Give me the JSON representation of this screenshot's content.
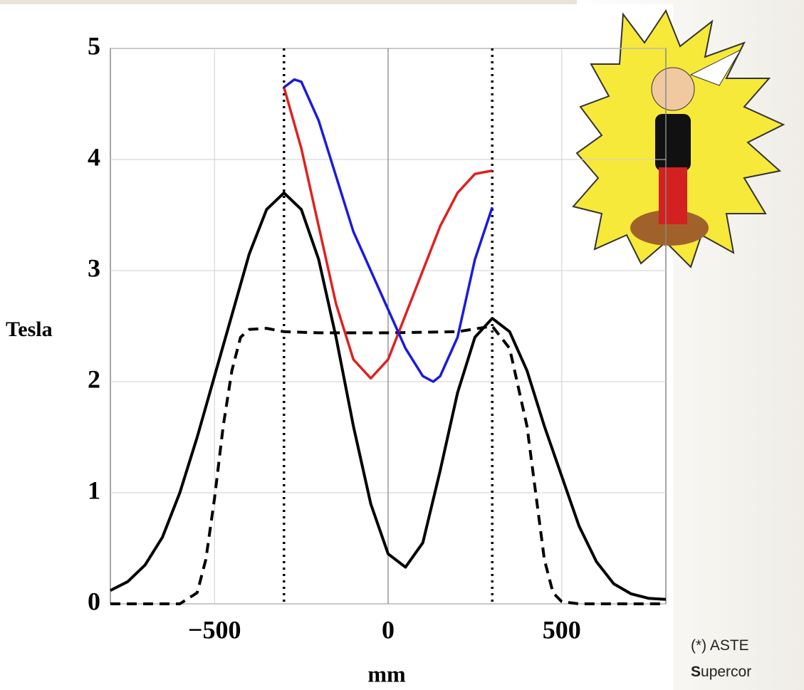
{
  "chart_data": {
    "type": "line",
    "xlabel": "mm",
    "ylabel": "Tesla",
    "xlim": [
      -800,
      800
    ],
    "ylim": [
      0,
      5
    ],
    "xticks": [
      {
        "value": -500,
        "label": "−500"
      },
      0,
      500
    ],
    "yticks": [
      0,
      1,
      2,
      3,
      4,
      5
    ],
    "grid": true,
    "vlines": [
      -300,
      300
    ],
    "series": [
      {
        "color": "#000000",
        "dash": "solid",
        "x": [
          -800,
          -750,
          -700,
          -650,
          -600,
          -550,
          -500,
          -450,
          -400,
          -350,
          -300,
          -250,
          -200,
          -150,
          -100,
          -50,
          0,
          50,
          100,
          150,
          200,
          250,
          300,
          350,
          400,
          450,
          500,
          550,
          600,
          650,
          700,
          750,
          800
        ],
        "values": [
          0.12,
          0.2,
          0.35,
          0.6,
          1.0,
          1.5,
          2.05,
          2.6,
          3.15,
          3.55,
          3.7,
          3.55,
          3.1,
          2.4,
          1.6,
          0.9,
          0.45,
          0.33,
          0.55,
          1.2,
          1.9,
          2.4,
          2.57,
          2.45,
          2.1,
          1.6,
          1.15,
          0.7,
          0.38,
          0.18,
          0.09,
          0.05,
          0.04
        ]
      },
      {
        "color": "#000000",
        "dash": "dashed",
        "x": [
          -800,
          -600,
          -550,
          -525,
          -500,
          -475,
          -450,
          -425,
          -400,
          -350,
          -300,
          -200,
          0,
          200,
          300,
          350,
          400,
          425,
          450,
          475,
          500,
          550,
          800
        ],
        "values": [
          0,
          0,
          0.1,
          0.4,
          0.95,
          1.6,
          2.1,
          2.4,
          2.47,
          2.48,
          2.45,
          2.44,
          2.44,
          2.45,
          2.5,
          2.3,
          1.6,
          1.0,
          0.4,
          0.1,
          0.02,
          0,
          0
        ]
      },
      {
        "color": "#e02020",
        "dash": "solid",
        "x": [
          -300,
          -250,
          -200,
          -150,
          -100,
          -50,
          0,
          50,
          100,
          150,
          200,
          250,
          300
        ],
        "values": [
          4.65,
          4.1,
          3.4,
          2.7,
          2.2,
          2.03,
          2.2,
          2.6,
          3.0,
          3.4,
          3.7,
          3.87,
          3.9
        ]
      },
      {
        "color": "#1a1ae0",
        "dash": "solid",
        "x": [
          -300,
          -270,
          -250,
          -200,
          -150,
          -100,
          -50,
          0,
          50,
          100,
          130,
          150,
          200,
          250,
          300
        ],
        "values": [
          4.65,
          4.72,
          4.7,
          4.35,
          3.85,
          3.35,
          3.0,
          2.65,
          2.3,
          2.05,
          2.0,
          2.05,
          2.4,
          3.1,
          3.57
        ]
      }
    ]
  },
  "footnote": {
    "line1": "(*) ASTE",
    "line2_bold": "S",
    "line2": "upercor"
  }
}
